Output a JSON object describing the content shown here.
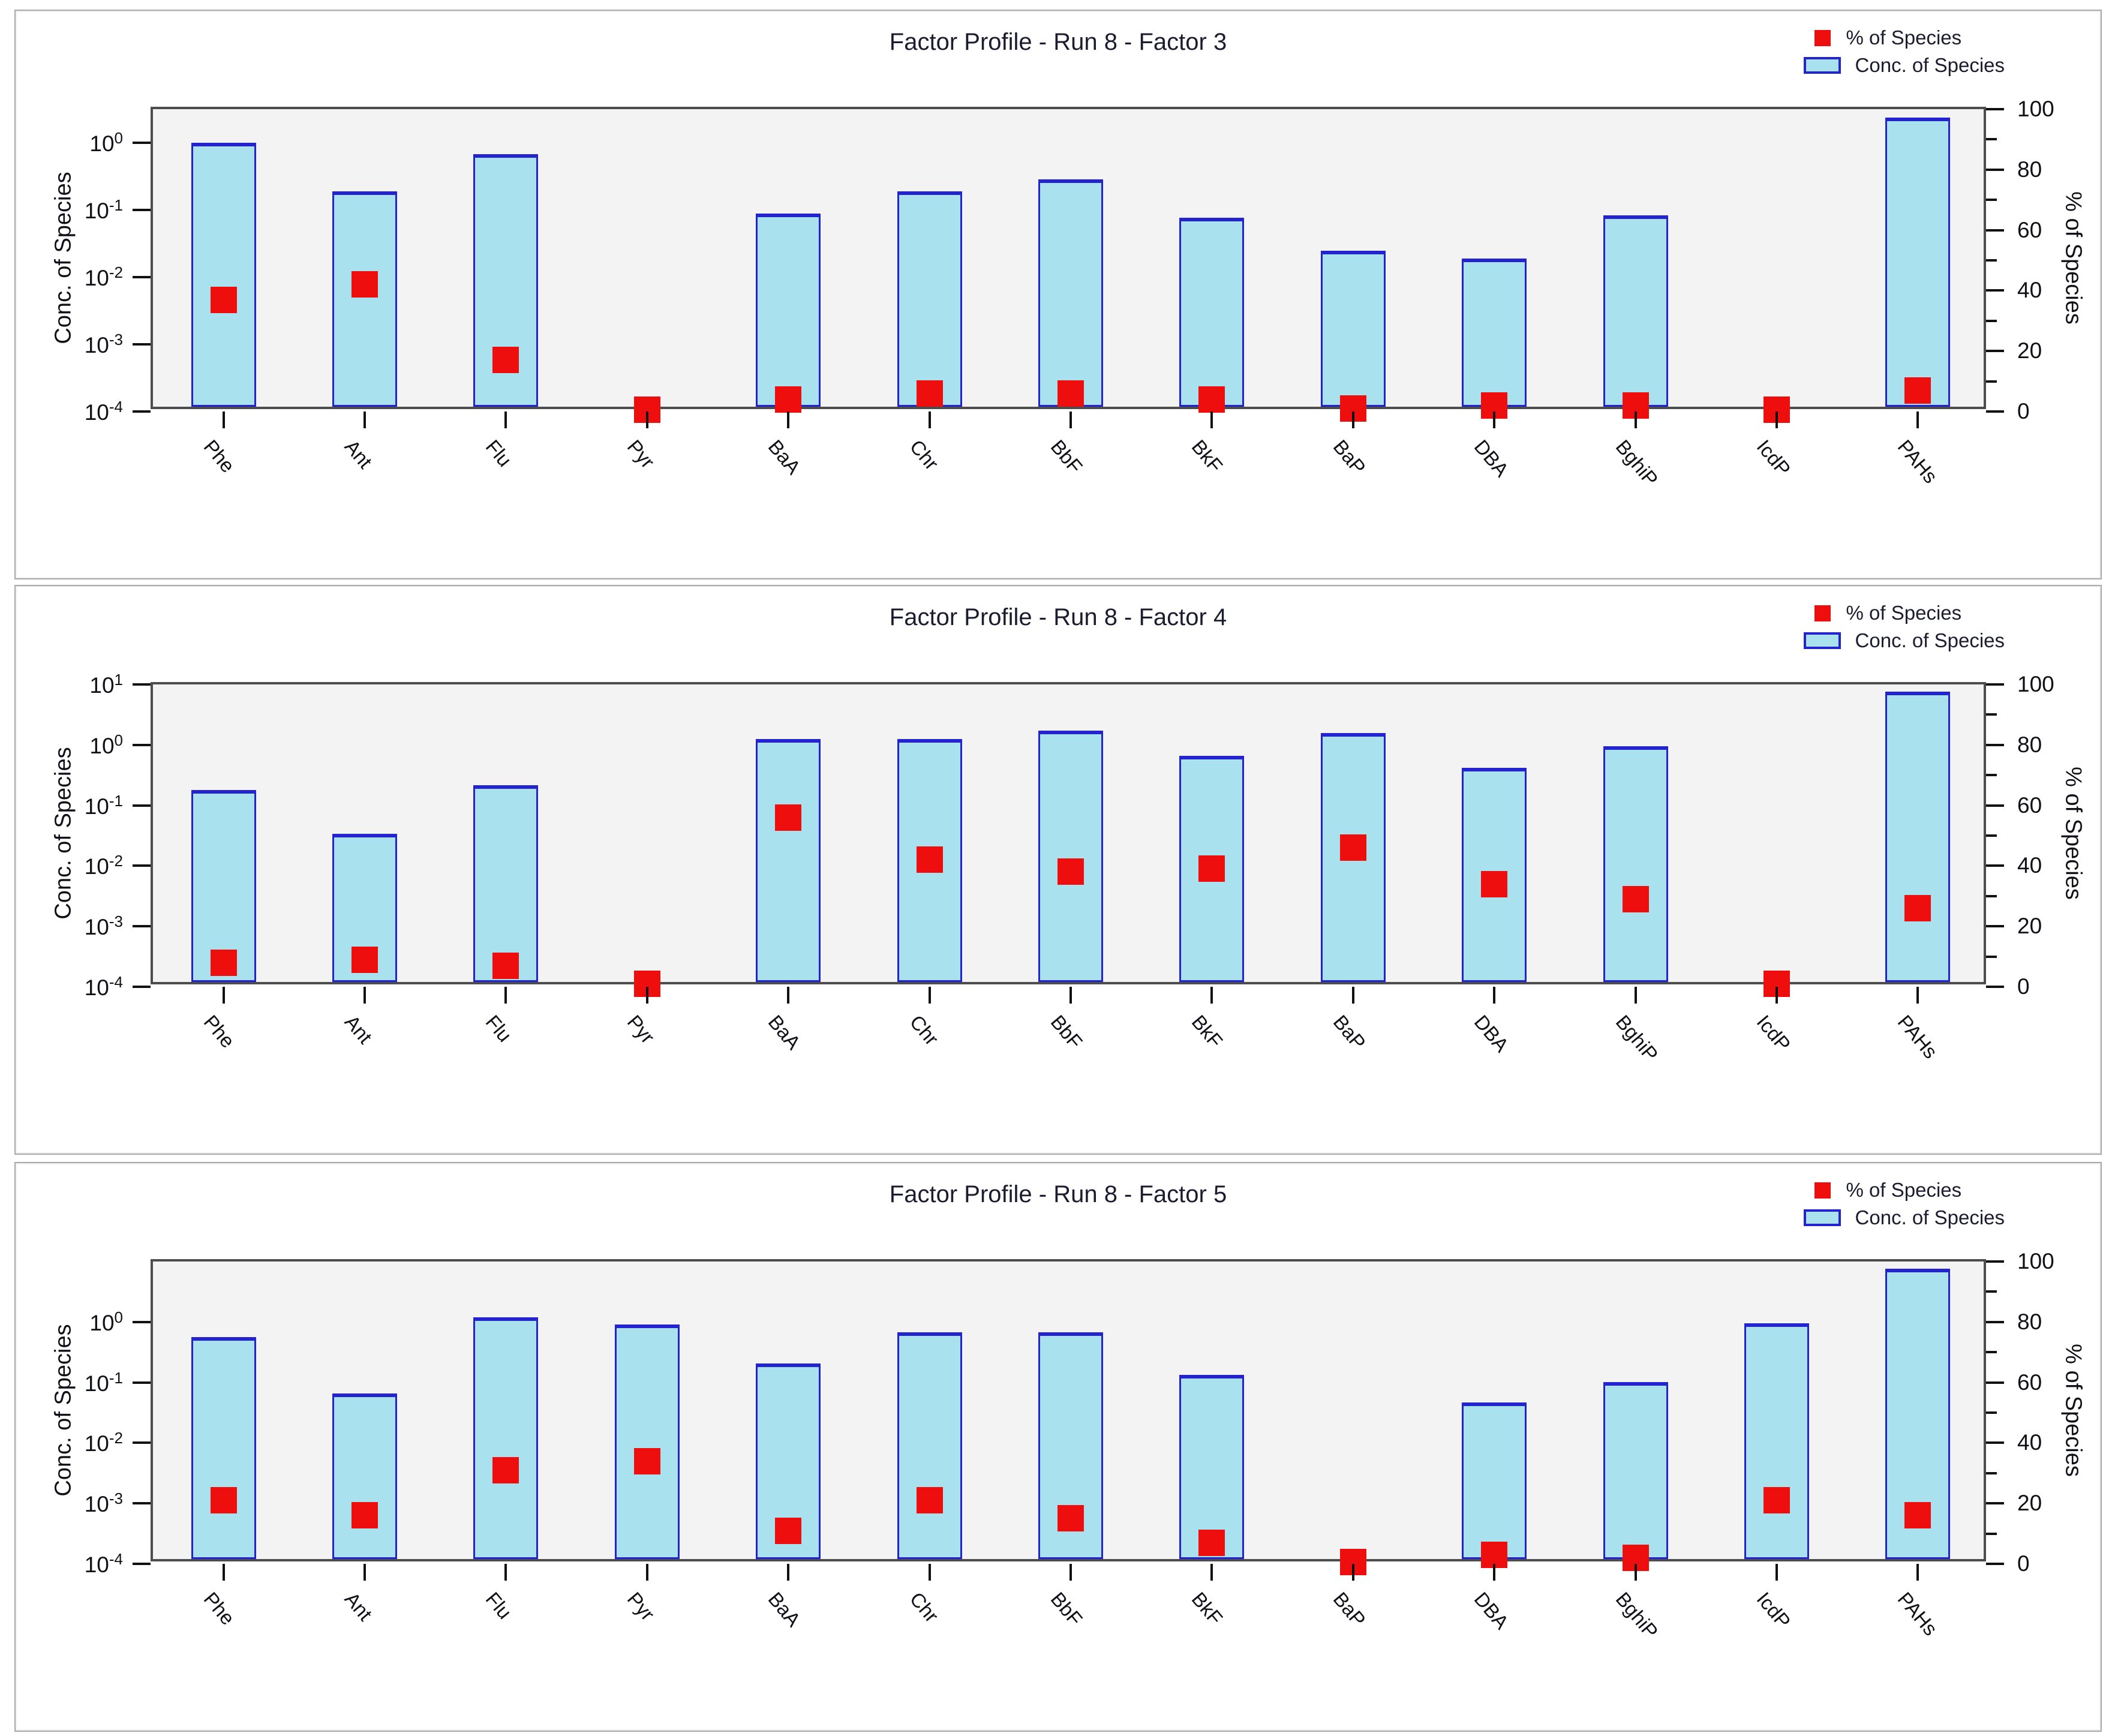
{
  "page": {
    "background": "#ffffff"
  },
  "legend": {
    "pct_label": "% of Species",
    "conc_label": "Conc. of Species"
  },
  "axes": {
    "left_label": "Conc. of Species",
    "right_label": "% of Species",
    "right_major_ticks": [
      0,
      20,
      40,
      60,
      80,
      100
    ],
    "right_minor_step": 10
  },
  "colors": {
    "bar_fill": "#a9e2ee",
    "bar_border": "#2323cf",
    "pct_square": "#ee0e0e",
    "plot_bg": "#f3f3f3",
    "frame": "#4d4d4d",
    "panel_border": "#a9a9a9",
    "title_color": "#1c1c30"
  },
  "chart_data": [
    {
      "type": "bar",
      "title": "Factor Profile - Run 8 - Factor 3",
      "xlabel": "",
      "ylabel_left": "Conc. of Species",
      "ylabel_right": "% of Species",
      "left_tick_exps": [
        0,
        -1,
        -2,
        -3,
        -4
      ],
      "ymin_exp": -4,
      "ymax_exp": 0.5,
      "right_ylim": [
        0,
        100
      ],
      "grid": false,
      "legend_position": "top-right",
      "categories": [
        "Phe",
        "Ant",
        "Flu",
        "Pyr",
        "BaA",
        "Chr",
        "BbF",
        "BkF",
        "BaP",
        "DBA",
        "BghiP",
        "IcdP",
        "PAHs"
      ],
      "series": [
        {
          "name": "Conc. of Species",
          "values": [
            0.85,
            0.16,
            0.58,
            null,
            0.075,
            0.16,
            0.24,
            0.065,
            0.021,
            0.016,
            0.07,
            null,
            2.0
          ]
        },
        {
          "name": "% of Species",
          "values": [
            37,
            42,
            17,
            0.5,
            4,
            6,
            6,
            4,
            1,
            2,
            2,
            0.5,
            7
          ]
        }
      ]
    },
    {
      "type": "bar",
      "title": "Factor Profile - Run 8 - Factor 4",
      "xlabel": "",
      "ylabel_left": "Conc. of Species",
      "ylabel_right": "% of Species",
      "left_tick_exps": [
        1,
        0,
        -1,
        -2,
        -3,
        -4
      ],
      "ymin_exp": -4,
      "ymax_exp": 1,
      "right_ylim": [
        0,
        100
      ],
      "grid": false,
      "legend_position": "top-right",
      "categories": [
        "Phe",
        "Ant",
        "Flu",
        "Pyr",
        "BaA",
        "Chr",
        "BbF",
        "BkF",
        "BaP",
        "DBA",
        "BghiP",
        "IcdP",
        "PAHs"
      ],
      "series": [
        {
          "name": "Conc. of Species",
          "values": [
            0.15,
            0.028,
            0.18,
            null,
            1.05,
            1.05,
            1.45,
            0.55,
            1.3,
            0.35,
            0.8,
            null,
            6.4
          ]
        },
        {
          "name": "% of Species",
          "values": [
            8,
            9,
            7,
            1,
            56,
            42,
            38,
            39,
            46,
            34,
            29,
            1,
            26
          ]
        }
      ]
    },
    {
      "type": "bar",
      "title": "Factor Profile - Run 8 - Factor 5",
      "xlabel": "",
      "ylabel_left": "Conc. of Species",
      "ylabel_right": "% of Species",
      "left_tick_exps": [
        0,
        -1,
        -2,
        -3,
        -4
      ],
      "ymin_exp": -4,
      "ymax_exp": 1,
      "right_ylim": [
        0,
        100
      ],
      "grid": false,
      "legend_position": "top-right",
      "categories": [
        "Phe",
        "Ant",
        "Flu",
        "Pyr",
        "BaA",
        "Chr",
        "BbF",
        "BkF",
        "BaP",
        "DBA",
        "BghiP",
        "IcdP",
        "PAHs"
      ],
      "series": [
        {
          "name": "Conc. of Species",
          "values": [
            0.47,
            0.055,
            1.0,
            0.75,
            0.17,
            0.56,
            0.56,
            0.11,
            null,
            0.039,
            0.085,
            0.8,
            6.4
          ]
        },
        {
          "name": "% of Species",
          "values": [
            21,
            16,
            31,
            34,
            11,
            21,
            15,
            7,
            0.5,
            3,
            2,
            21,
            16
          ]
        }
      ]
    }
  ],
  "panel_tops": [
    16,
    975,
    1937
  ]
}
